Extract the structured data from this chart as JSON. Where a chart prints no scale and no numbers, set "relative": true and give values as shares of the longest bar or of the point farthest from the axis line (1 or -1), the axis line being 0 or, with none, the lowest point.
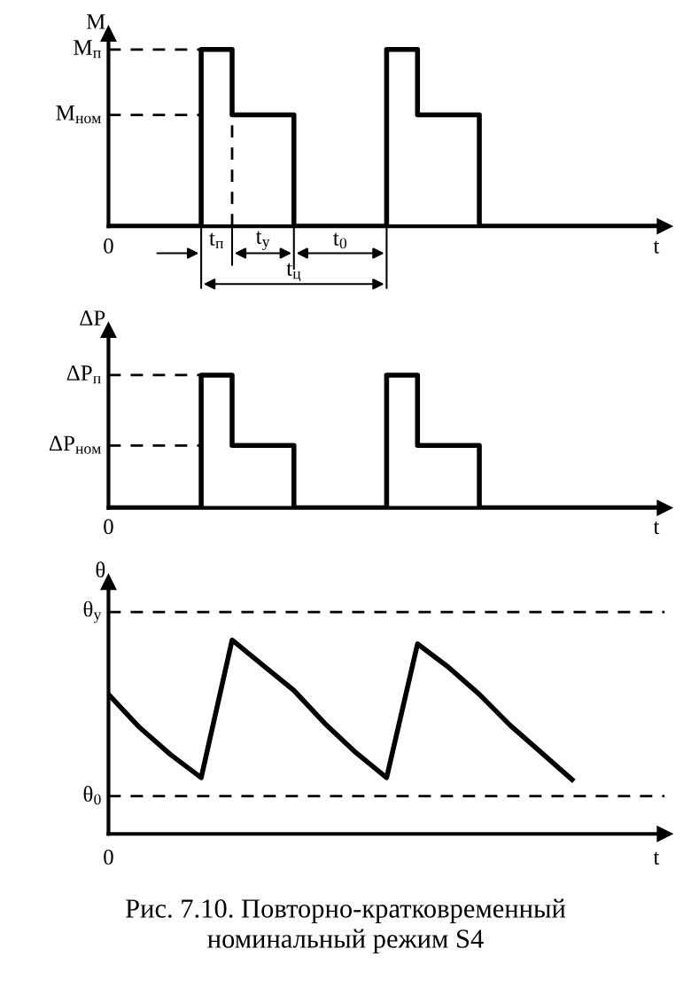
{
  "chart_data": [
    {
      "type": "step",
      "relative": true,
      "ylabel": "M",
      "xlabel": "t",
      "grid": false,
      "legend": false,
      "categories": [
        null,
        null,
        null,
        null,
        null,
        null,
        null,
        null,
        null,
        null,
        null,
        null,
        null,
        null,
        null,
        null,
        null,
        null,
        null
      ],
      "series": [
        {
          "color": "#000000",
          "values": [
            0,
            0,
            0,
            1,
            0.63,
            0.63,
            0,
            0,
            0,
            1,
            0.63,
            0.63,
            0,
            0,
            0,
            0,
            0,
            0,
            0
          ]
        }
      ],
      "ref_lines": [
        {
          "axis": "y",
          "value": 1,
          "label": "M$_{п}$",
          "line_style": "dashed"
        },
        {
          "axis": "y",
          "value": 0.63,
          "label": "M$_{ном}$",
          "line_style": "dashed"
        }
      ],
      "annotations": [
        "0",
        "t$_{п}$",
        "t$_{у}$",
        "t$_{0}$",
        "t$_{ц}$"
      ]
    },
    {
      "type": "step",
      "relative": true,
      "ylabel": "ΔP",
      "xlabel": "t",
      "grid": false,
      "legend": false,
      "categories": [
        null,
        null,
        null,
        null,
        null,
        null,
        null,
        null,
        null,
        null,
        null,
        null,
        null,
        null,
        null,
        null,
        null,
        null,
        null
      ],
      "series": [
        {
          "color": "#000000",
          "values": [
            0,
            0,
            0,
            1,
            0.47,
            0.47,
            0,
            0,
            0,
            1,
            0.47,
            0.47,
            0,
            0,
            0,
            0,
            0,
            0,
            0
          ]
        }
      ],
      "ref_lines": [
        {
          "axis": "y",
          "value": 1,
          "label": "ΔP$_{п}$",
          "line_style": "dashed"
        },
        {
          "axis": "y",
          "value": 0.47,
          "label": "ΔP$_{ном}$",
          "line_style": "dashed"
        }
      ],
      "annotations": [
        "0"
      ]
    },
    {
      "type": "line",
      "relative": true,
      "ylabel": "θ",
      "xlabel": "t",
      "grid": false,
      "legend": false,
      "marker": "none",
      "categories": [
        null,
        null,
        null,
        null,
        null,
        null,
        null,
        null,
        null,
        null,
        null,
        null,
        null,
        null,
        null,
        null,
        null,
        null,
        null
      ],
      "series": [
        {
          "color": "#000000",
          "values": [
            0.72,
            0.55,
            0.41,
            0.29,
            1.0,
            0.87,
            0.74,
            0.57,
            0.42,
            0.29,
            0.98,
            0.86,
            0.72,
            0.56,
            0.42,
            0.28,
            null,
            null,
            null
          ]
        }
      ],
      "ref_lines": [
        {
          "axis": "y",
          "value": 1.145,
          "label": "θ$_{у}$",
          "line_style": "dashed"
        },
        {
          "axis": "y",
          "value": 0.195,
          "label": "θ$_{0}$",
          "line_style": "dashed"
        }
      ],
      "annotations": [
        "0",
        "Рис. 7.10. Повторно-кратковременный\nноминальный режим S4"
      ]
    }
  ]
}
